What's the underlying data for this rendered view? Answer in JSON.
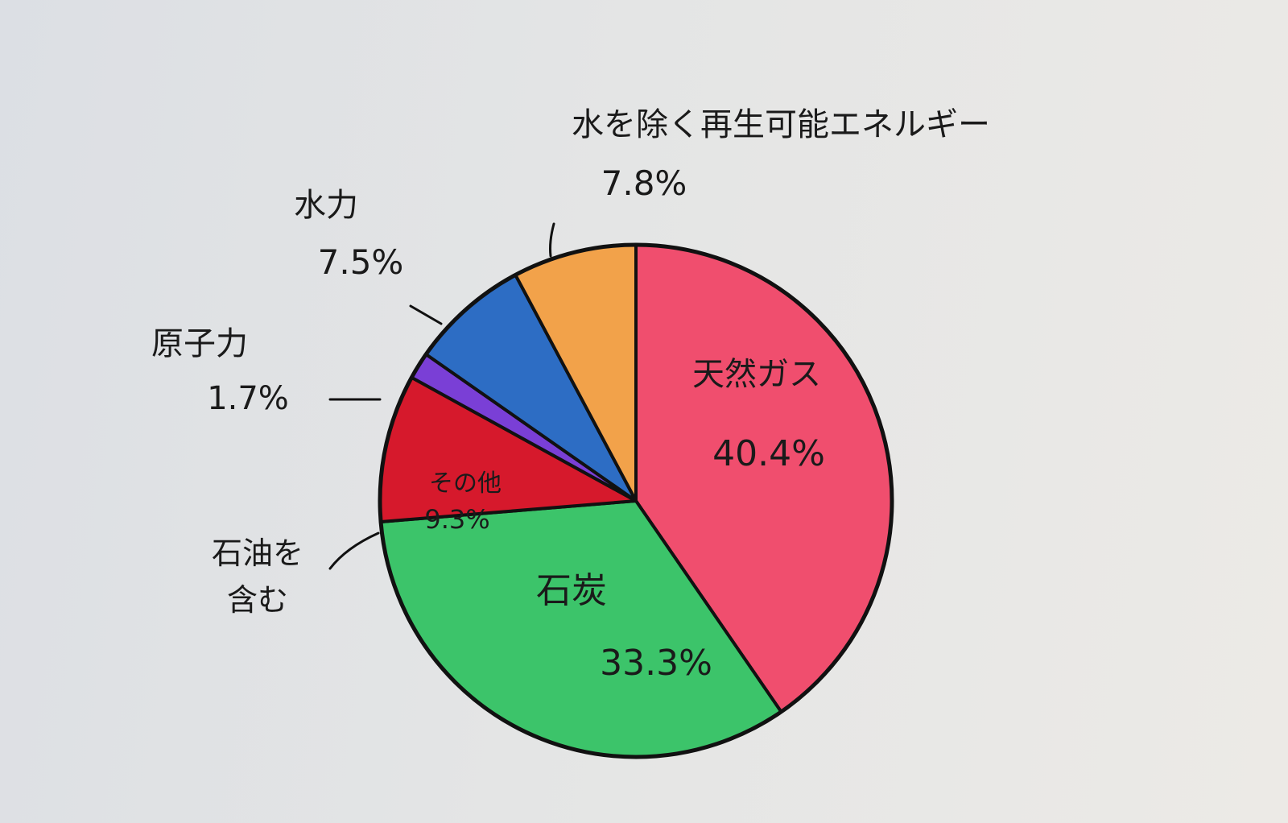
{
  "chart_data": {
    "type": "pie",
    "title": "",
    "start_angle_deg": 90,
    "direction": "clockwise",
    "slices": [
      {
        "label": "天然ガス",
        "value": 40.4,
        "value_label": "40.4%",
        "color": "#f04e6e"
      },
      {
        "label": "石炭",
        "value": 33.3,
        "value_label": "33.3%",
        "color": "#3cc46a"
      },
      {
        "label": "その他",
        "value": 9.3,
        "value_label": "9.3%",
        "note": "石油を含む",
        "color": "#d6192c"
      },
      {
        "label": "原子力",
        "value": 1.7,
        "value_label": "1.7%",
        "color": "#7a3fd6"
      },
      {
        "label": "水力",
        "value": 7.5,
        "value_label": "7.5%",
        "color": "#2d6dc4"
      },
      {
        "label": "水を除く再生可能エネルギー",
        "value": 7.8,
        "value_label": "7.8%",
        "color": "#f2a24a"
      }
    ]
  }
}
